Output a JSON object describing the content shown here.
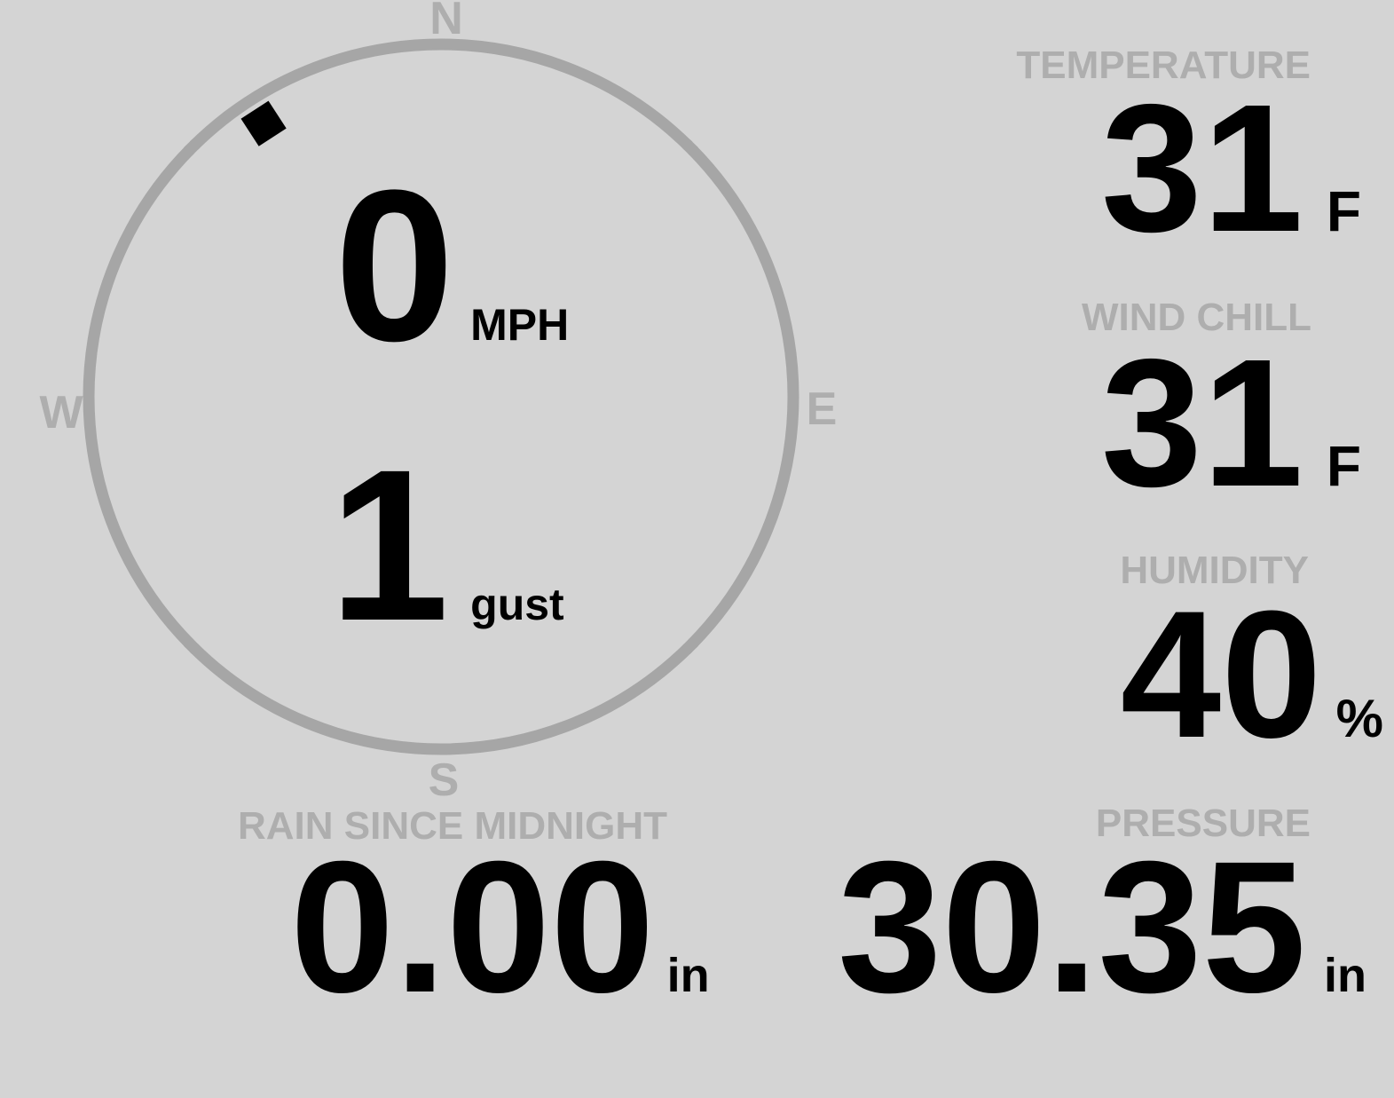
{
  "colors": {
    "background": "#d4d4d4",
    "ring_gray": "#a6a6a6",
    "muted_gray": "#aeaeae",
    "value_black": "#000000"
  },
  "wind": {
    "direction_deg": 327,
    "speed": "0",
    "speed_unit": "MPH",
    "gust": "1",
    "gust_unit": "gust",
    "labels": {
      "north": "N",
      "east": "E",
      "south": "S",
      "west": "W"
    }
  },
  "metrics": {
    "temperature": {
      "label": "TEMPERATURE",
      "value": "31",
      "unit": "F"
    },
    "wind_chill": {
      "label": "WIND CHILL",
      "value": "31",
      "unit": "F"
    },
    "humidity": {
      "label": "HUMIDITY",
      "value": "40",
      "unit": "%"
    },
    "pressure": {
      "label": "PRESSURE",
      "value": "30.35",
      "unit": "in"
    },
    "rain_since_midnight": {
      "label": "RAIN SINCE MIDNIGHT",
      "value": "0.00",
      "unit": "in"
    }
  }
}
